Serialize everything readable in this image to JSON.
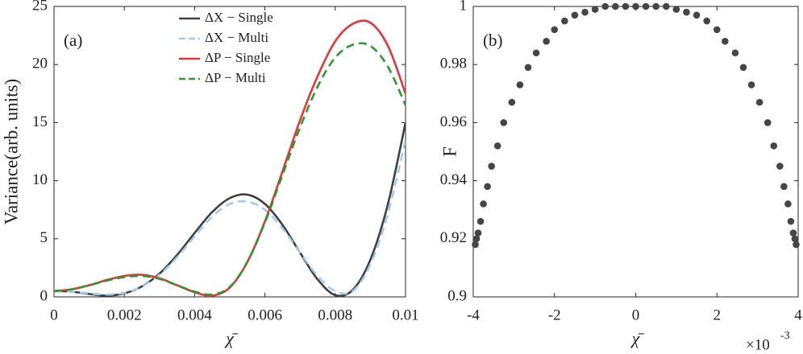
{
  "chart_data": [
    {
      "type": "line",
      "annotation": "(a)",
      "x_label": "χ̄",
      "y_label": "Variance(arb. units)",
      "x": [
        0,
        0.0005,
        0.001,
        0.0015,
        0.002,
        0.0025,
        0.003,
        0.0035,
        0.004,
        0.0045,
        0.005,
        0.0055,
        0.006,
        0.0065,
        0.007,
        0.0075,
        0.008,
        0.0085,
        0.009,
        0.0095,
        0.01
      ],
      "series": [
        {
          "name": "ΔX − Single",
          "color": "#404040",
          "linestyle": "solid",
          "values": [
            0.5,
            0.45,
            0.25,
            0.1,
            0.3,
            0.9,
            2.0,
            3.6,
            5.5,
            7.3,
            8.5,
            8.8,
            8.0,
            6.2,
            3.8,
            1.5,
            0.15,
            0.6,
            3.2,
            8.0,
            15.0
          ]
        },
        {
          "name": "ΔX − Multi",
          "color": "#a3cbf2",
          "linestyle": "dashed",
          "values": [
            0.5,
            0.45,
            0.3,
            0.2,
            0.35,
            0.9,
            1.9,
            3.4,
            5.2,
            6.9,
            8.0,
            8.2,
            7.5,
            5.9,
            3.8,
            1.8,
            0.5,
            0.5,
            2.8,
            7.2,
            13.5
          ]
        },
        {
          "name": "ΔP − Single",
          "color": "#e8333a",
          "linestyle": "solid",
          "values": [
            0.5,
            0.65,
            1.0,
            1.45,
            1.8,
            1.9,
            1.6,
            1.0,
            0.4,
            0.1,
            0.8,
            3.0,
            6.5,
            10.8,
            15.2,
            19.0,
            22.0,
            23.5,
            23.6,
            21.6,
            17.5
          ]
        },
        {
          "name": "ΔP − Multi",
          "color": "#2a9a2a",
          "linestyle": "dashed",
          "values": [
            0.5,
            0.65,
            1.0,
            1.4,
            1.7,
            1.8,
            1.55,
            1.0,
            0.45,
            0.2,
            0.85,
            3.0,
            6.4,
            10.5,
            14.6,
            18.1,
            20.6,
            21.7,
            21.6,
            19.8,
            16.5
          ]
        }
      ],
      "xlim": [
        0,
        0.01
      ],
      "xticks": [
        0,
        0.002,
        0.004,
        0.006,
        0.008,
        0.01
      ],
      "ylim": [
        0,
        25
      ],
      "yticks": [
        0,
        5,
        10,
        15,
        20,
        25
      ],
      "legend": "upper-center"
    },
    {
      "type": "scatter",
      "annotation": "(b)",
      "x_label": "χ̄",
      "y_label": "F",
      "x_multiplier": {
        "base": "×10",
        "exponent": "-3"
      },
      "color": "#454545",
      "x": [
        -3.95,
        -3.92,
        -3.88,
        -3.82,
        -3.75,
        -3.65,
        -3.55,
        -3.4,
        -3.25,
        -3.05,
        -2.85,
        -2.65,
        -2.45,
        -2.2,
        -2.0,
        -1.75,
        -1.5,
        -1.25,
        -1.0,
        -0.75,
        -0.5,
        -0.25,
        0,
        0.25,
        0.5,
        0.75,
        1.0,
        1.25,
        1.5,
        1.75,
        2.0,
        2.2,
        2.45,
        2.65,
        2.85,
        3.05,
        3.25,
        3.4,
        3.55,
        3.65,
        3.75,
        3.82,
        3.88,
        3.92,
        3.95
      ],
      "values": [
        0.918,
        0.92,
        0.922,
        0.926,
        0.932,
        0.938,
        0.945,
        0.952,
        0.96,
        0.967,
        0.973,
        0.979,
        0.984,
        0.988,
        0.992,
        0.995,
        0.997,
        0.998,
        0.999,
        1.0,
        1.0,
        1.0,
        1.0,
        1.0,
        1.0,
        1.0,
        0.999,
        0.998,
        0.997,
        0.995,
        0.992,
        0.988,
        0.984,
        0.979,
        0.973,
        0.967,
        0.96,
        0.952,
        0.945,
        0.938,
        0.932,
        0.926,
        0.922,
        0.92,
        0.918
      ],
      "xlim": [
        -4,
        4
      ],
      "xticks": [
        -4,
        -2,
        0,
        2,
        4
      ],
      "ylim": [
        0.9,
        1
      ],
      "yticks": [
        0.9,
        0.92,
        0.94,
        0.96,
        0.98,
        1
      ]
    }
  ]
}
